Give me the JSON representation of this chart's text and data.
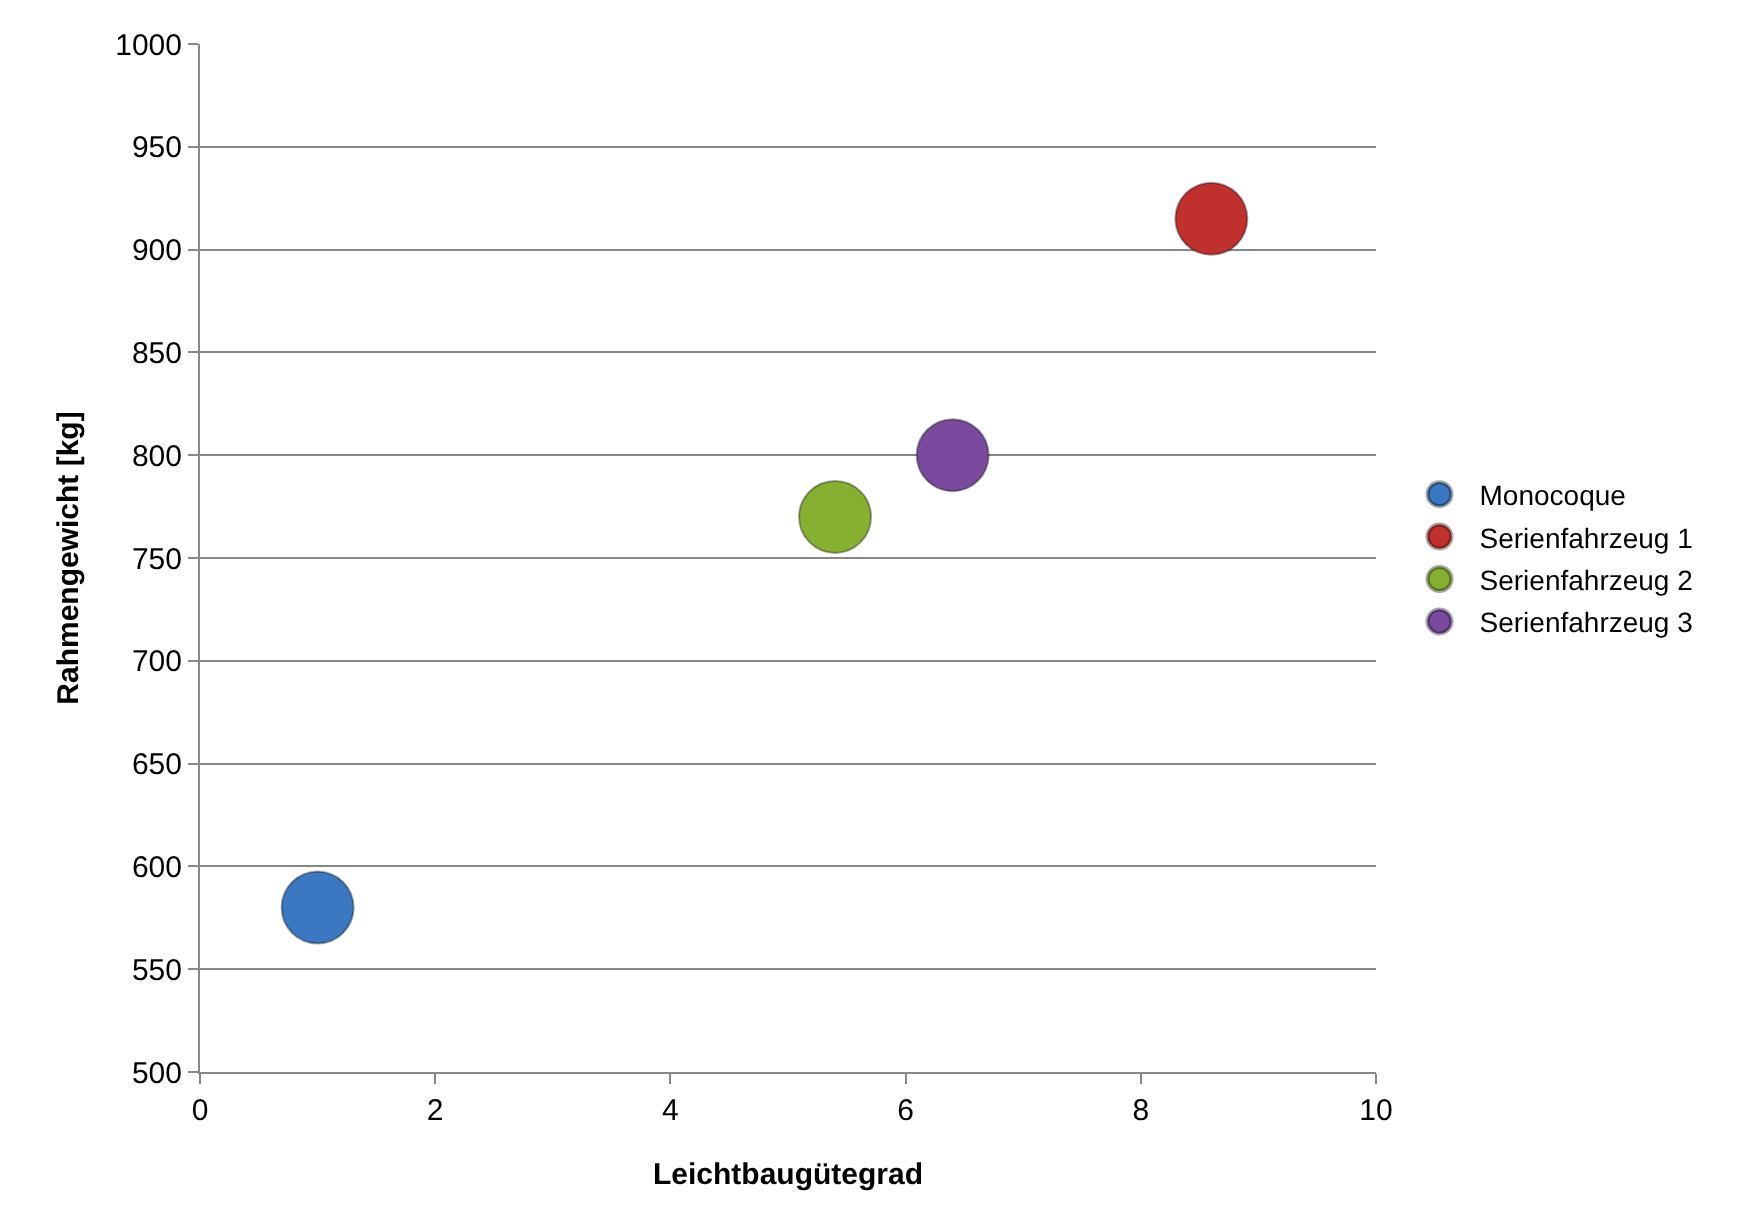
{
  "chart_data": {
    "type": "scatter",
    "xlabel": "Leichtbaugütegrad",
    "ylabel": "Rahmengewicht [kg]",
    "series": [
      {
        "name": "Monocoque",
        "color": "#3a78c2",
        "x": [
          1.0
        ],
        "values": [
          580
        ]
      },
      {
        "name": "Serienfahrzeug 1",
        "color": "#c0302c",
        "x": [
          8.6
        ],
        "values": [
          915
        ]
      },
      {
        "name": "Serienfahrzeug 2",
        "color": "#86b030",
        "x": [
          5.4
        ],
        "values": [
          770
        ]
      },
      {
        "name": "Serienfahrzeug 3",
        "color": "#7a4a9e",
        "x": [
          6.4
        ],
        "values": [
          800
        ]
      }
    ],
    "xlim": [
      0,
      10
    ],
    "ylim": [
      500,
      1000
    ],
    "xticks": [
      0,
      2,
      4,
      6,
      8,
      10
    ],
    "yticks": [
      500,
      550,
      600,
      650,
      700,
      750,
      800,
      850,
      900,
      950,
      1000
    ],
    "grid": "y",
    "legend": "right",
    "marker": "circle"
  }
}
